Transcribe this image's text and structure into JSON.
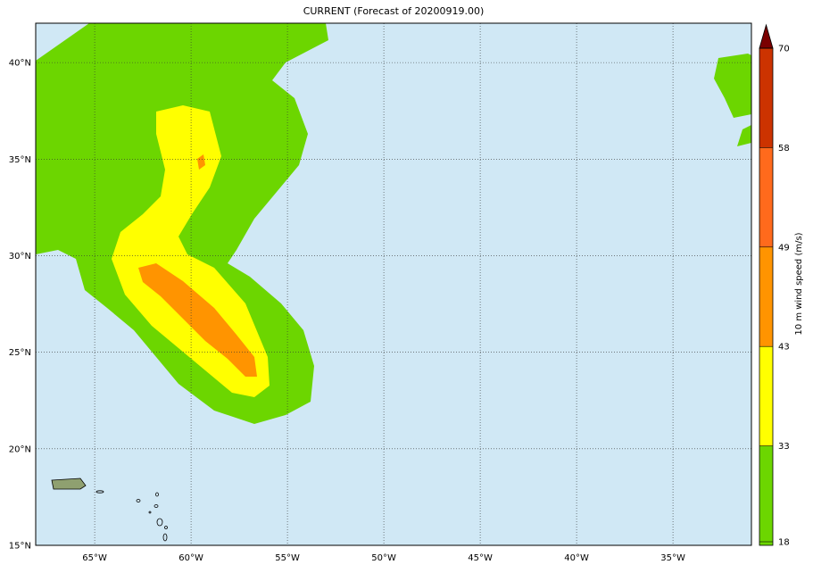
{
  "title": "CURRENT (Forecast of 20200919.00)",
  "map": {
    "lonlim": [
      -68.06,
      -30.93
    ],
    "latlim": [
      15,
      42.04
    ],
    "lon_ticks": [
      {
        "value": -65,
        "label": "65°W"
      },
      {
        "value": -60,
        "label": "60°W"
      },
      {
        "value": -55,
        "label": "55°W"
      },
      {
        "value": -50,
        "label": "50°W"
      },
      {
        "value": -45,
        "label": "45°W"
      },
      {
        "value": -40,
        "label": "40°W"
      },
      {
        "value": -35,
        "label": "35°W"
      }
    ],
    "lat_ticks": [
      {
        "value": 15,
        "label": "15°N"
      },
      {
        "value": 20,
        "label": "20°N"
      },
      {
        "value": 25,
        "label": "25°N"
      },
      {
        "value": 30,
        "label": "30°N"
      },
      {
        "value": 35,
        "label": "35°N"
      },
      {
        "value": 40,
        "label": "40°N"
      }
    ]
  },
  "colorbar": {
    "label": "10 m wind speed (m/s)",
    "levels": [
      18,
      33,
      43,
      49,
      58,
      70
    ],
    "colors": [
      "#6cd600",
      "#ffff00",
      "#ff9400",
      "#ff6a1c",
      "#cc3300"
    ],
    "extend_color": "#7a0000"
  }
}
